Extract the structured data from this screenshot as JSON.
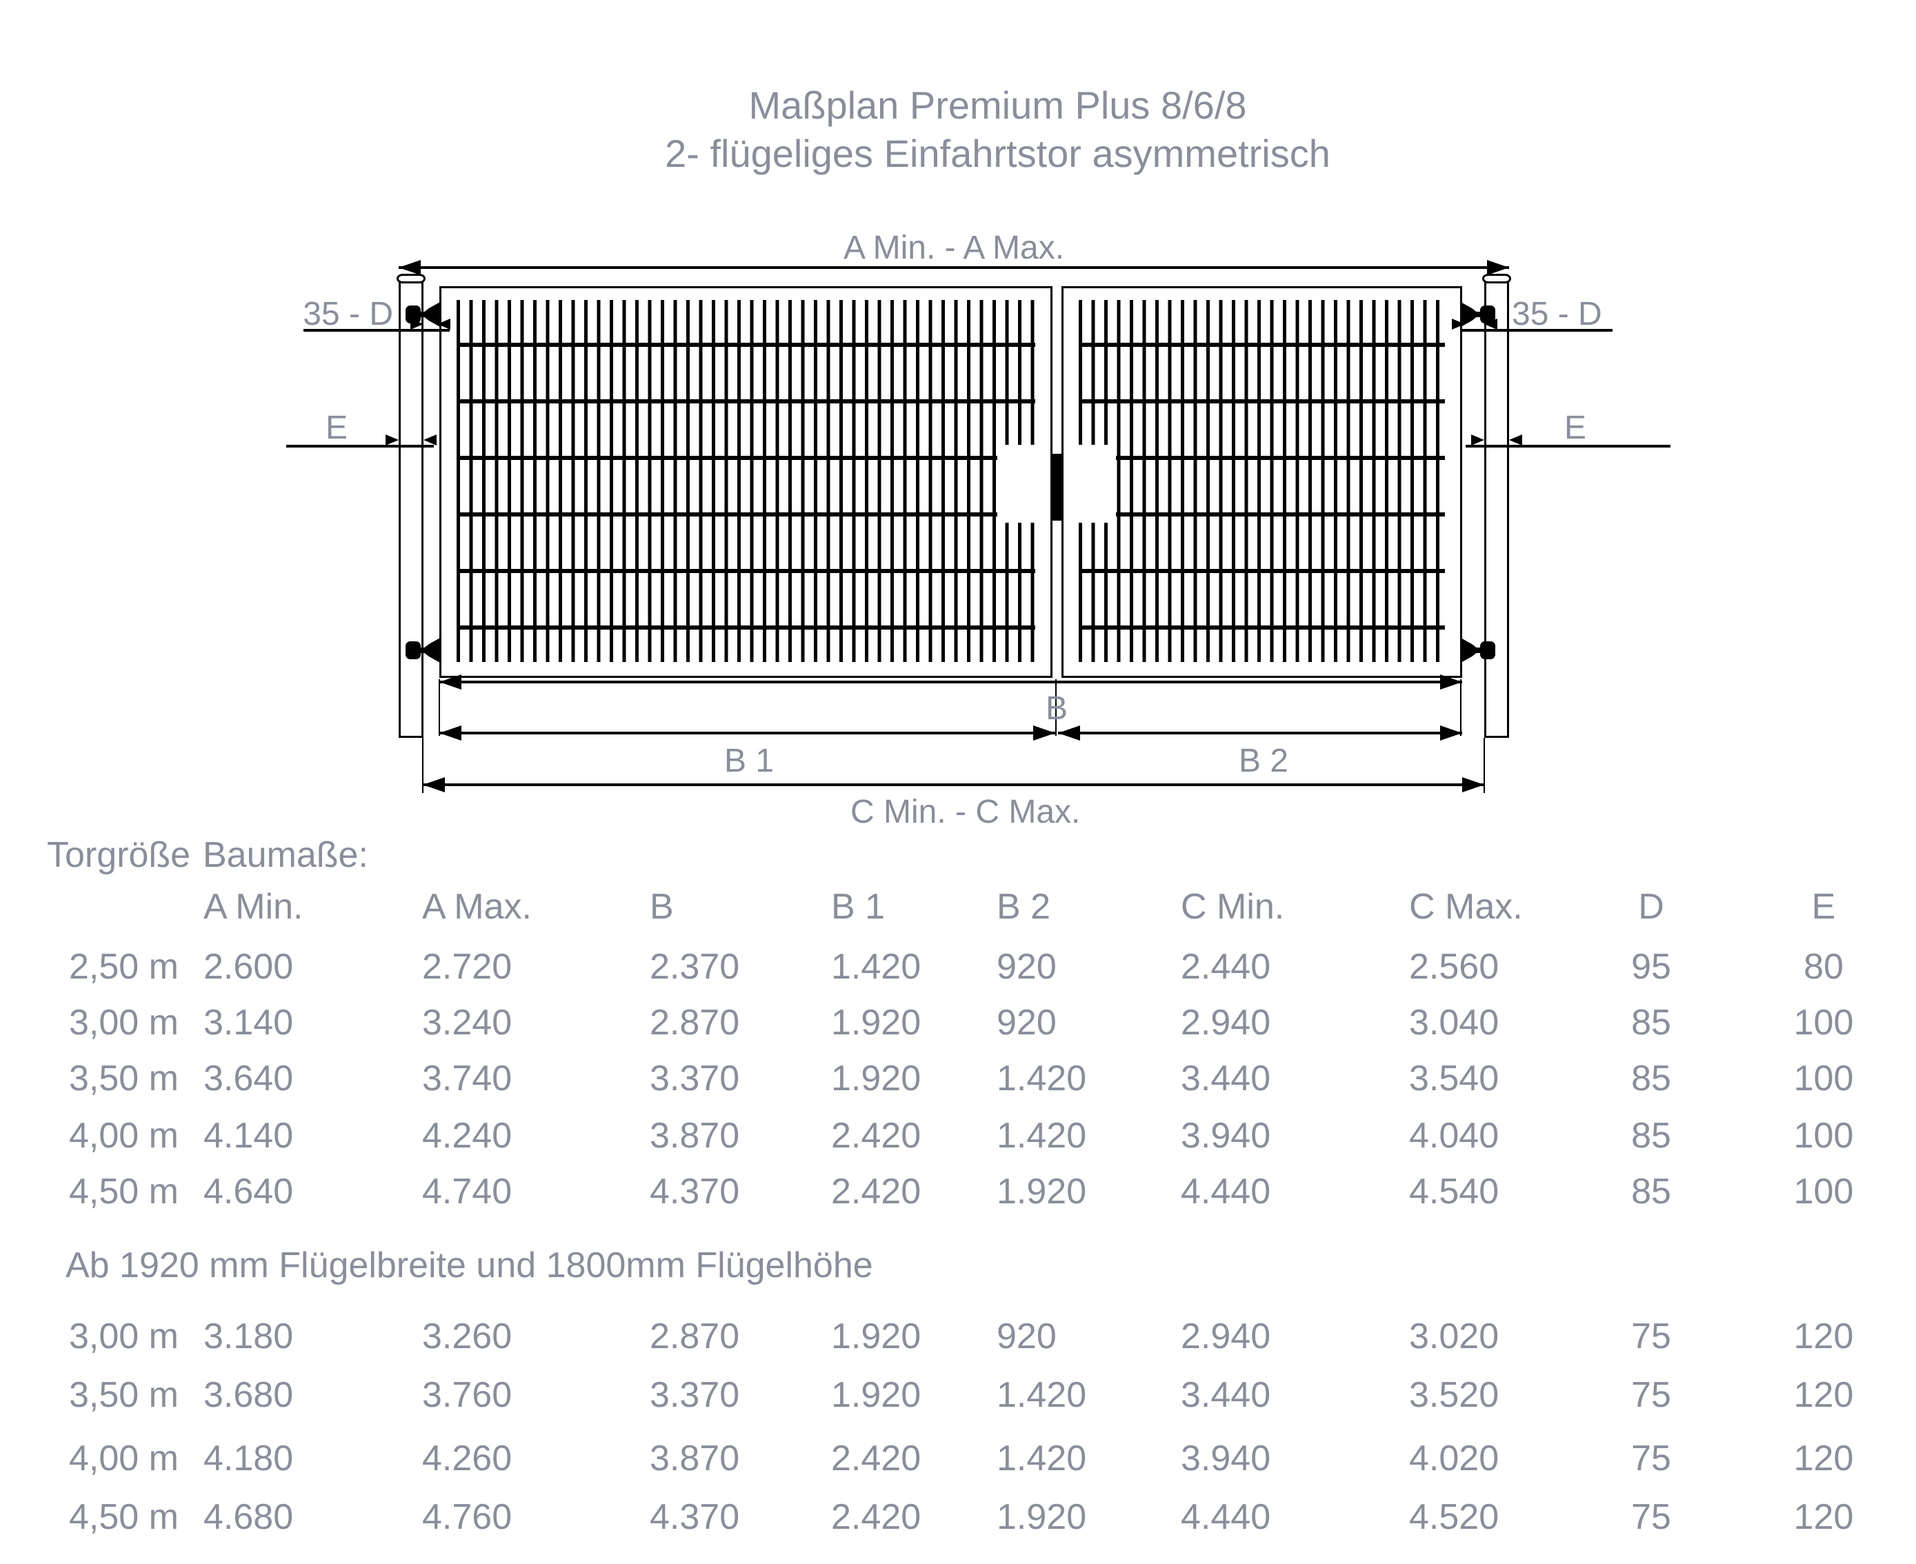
{
  "title": {
    "line1": "Maßplan Premium Plus 8/6/8",
    "line2": "2- flügeliges Einfahrtstor asymmetrisch"
  },
  "diagram": {
    "dim_a_label": "A Min. - A Max.",
    "dim_35d_left_label": "35 - D",
    "dim_35d_right_label": "35 - D",
    "dim_e_left_label": "E",
    "dim_e_right_label": "E",
    "dim_b_label": "B",
    "dim_b1_label": "B 1",
    "dim_b2_label": "B 2",
    "dim_c_label": "C Min. - C Max."
  },
  "colors": {
    "text_gray": "#8a8e9b",
    "line_black": "#000000",
    "background": "#ffffff"
  },
  "table": {
    "header_col0": "Torgröße",
    "header_group": "Baumaße:",
    "col_headers": [
      "A Min.",
      "A Max.",
      "B",
      "B 1",
      "B 2",
      "C Min.",
      "C Max.",
      "D",
      "E"
    ],
    "rows": [
      [
        "2,50 m",
        "2.600",
        "2.720",
        "2.370",
        "1.420",
        "920",
        "2.440",
        "2.560",
        "95",
        "80"
      ],
      [
        "3,00 m",
        "3.140",
        "3.240",
        "2.870",
        "1.920",
        "920",
        "2.940",
        "3.040",
        "85",
        "100"
      ],
      [
        "3,50 m",
        "3.640",
        "3.740",
        "3.370",
        "1.920",
        "1.420",
        "3.440",
        "3.540",
        "85",
        "100"
      ],
      [
        "4,00 m",
        "4.140",
        "4.240",
        "3.870",
        "2.420",
        "1.420",
        "3.940",
        "4.040",
        "85",
        "100"
      ],
      [
        "4,50 m",
        "4.640",
        "4.740",
        "4.370",
        "2.420",
        "1.920",
        "4.440",
        "4.540",
        "85",
        "100"
      ]
    ],
    "note": "Ab 1920 mm Flügelbreite und 1800mm Flügelhöhe",
    "rows2": [
      [
        "3,00 m",
        "3.180",
        "3.260",
        "2.870",
        "1.920",
        "920",
        "2.940",
        "3.020",
        "75",
        "120"
      ],
      [
        "3,50 m",
        "3.680",
        "3.760",
        "3.370",
        "1.920",
        "1.420",
        "3.440",
        "3.520",
        "75",
        "120"
      ],
      [
        "4,00 m",
        "4.180",
        "4.260",
        "3.870",
        "2.420",
        "1.420",
        "3.940",
        "4.020",
        "75",
        "120"
      ],
      [
        "4,50 m",
        "4.680",
        "4.760",
        "4.370",
        "2.420",
        "1.920",
        "4.440",
        "4.520",
        "75",
        "120"
      ]
    ]
  }
}
